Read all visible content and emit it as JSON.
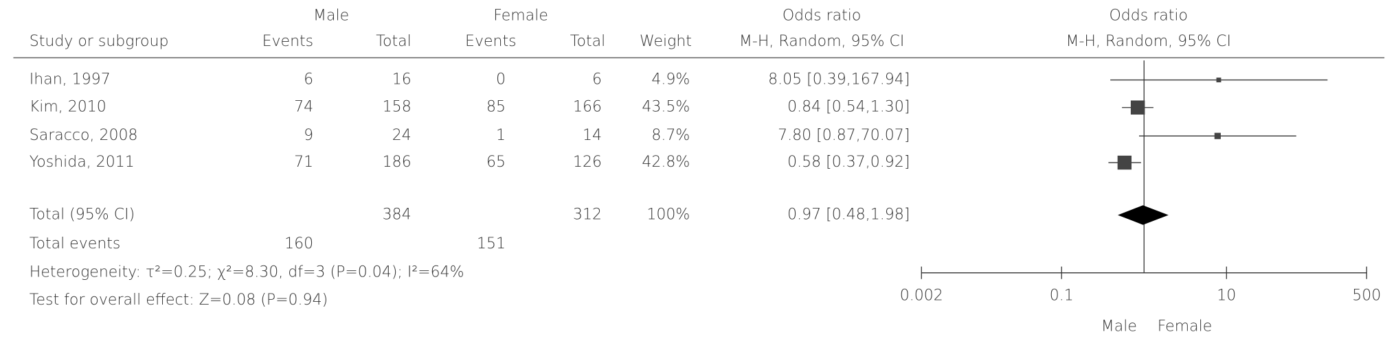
{
  "chart_data": {
    "type": "forest",
    "group_headers": {
      "male": "Male",
      "female": "Female",
      "or_text": "Odds ratio",
      "or_plot": "Odds ratio"
    },
    "column_headers": [
      "Study or subgroup",
      "Events",
      "Total",
      "Events",
      "Total",
      "Weight",
      "M-H, Random, 95% CI",
      "M-H, Random, 95% CI"
    ],
    "studies": [
      {
        "name": "Ihan, 1997",
        "male_events": 6,
        "male_total": 16,
        "female_events": 0,
        "female_total": 6,
        "weight": 4.9,
        "weight_label": "4.9%",
        "or": 8.05,
        "ci_low": 0.39,
        "ci_high": 167.94,
        "ci_label": "8.05 [0.39,167.94]"
      },
      {
        "name": "Kim, 2010",
        "male_events": 74,
        "male_total": 158,
        "female_events": 85,
        "female_total": 166,
        "weight": 43.5,
        "weight_label": "43.5%",
        "or": 0.84,
        "ci_low": 0.54,
        "ci_high": 1.3,
        "ci_label": "0.84 [0.54,1.30]"
      },
      {
        "name": "Saracco, 2008",
        "male_events": 9,
        "male_total": 24,
        "female_events": 1,
        "female_total": 14,
        "weight": 8.7,
        "weight_label": "8.7%",
        "or": 7.8,
        "ci_low": 0.87,
        "ci_high": 70.07,
        "ci_label": "7.80 [0.87,70.07]"
      },
      {
        "name": "Yoshida, 2011",
        "male_events": 71,
        "male_total": 186,
        "female_events": 65,
        "female_total": 126,
        "weight": 42.8,
        "weight_label": "42.8%",
        "or": 0.58,
        "ci_low": 0.37,
        "ci_high": 0.92,
        "ci_label": "0.58 [0.37,0.92]"
      }
    ],
    "total": {
      "name": "Total (95% CI)",
      "male_total": 384,
      "female_total": 312,
      "weight": 100,
      "weight_label": "100%",
      "or": 0.97,
      "ci_low": 0.48,
      "ci_high": 1.98,
      "ci_label": "0.97 [0.48,1.98]"
    },
    "total_events": {
      "name": "Total events",
      "male": 160,
      "female": 151
    },
    "heterogeneity": "Heterogeneity: τ²=0.25; χ²=8.30, df=3 (P=0.04); I²=64%",
    "overall_effect": "Test for overall effect: Z=0.08 (P=0.94)",
    "log_scale": true,
    "xlim": [
      0.002,
      500
    ],
    "xticks": [
      0.002,
      0.1,
      10,
      500
    ],
    "direction_labels": [
      "Male",
      "Female"
    ],
    "marker_color": "#444444"
  }
}
